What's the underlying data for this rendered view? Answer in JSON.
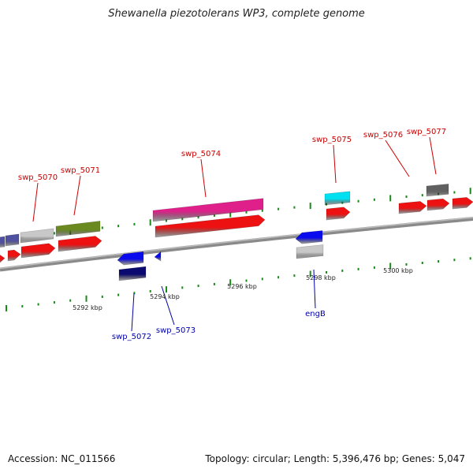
{
  "title": "Shewanella piezotolerans WP3, complete genome",
  "footer": {
    "accession": "Accession: NC_011566",
    "summary": "Topology: circular; Length: 5,396,476 bp; Genes: 5,047"
  },
  "scale_labels": [
    "5292 kbp",
    "5294 kbp",
    "5296 kbp",
    "5298 kbp",
    "5300 kbp"
  ],
  "gene_labels": [
    {
      "text": "swp_5070",
      "strand": "plus"
    },
    {
      "text": "swp_5071",
      "strand": "plus"
    },
    {
      "text": "swp_5074",
      "strand": "plus"
    },
    {
      "text": "swp_5075",
      "strand": "plus"
    },
    {
      "text": "swp_5076",
      "strand": "plus"
    },
    {
      "text": "swp_5077",
      "strand": "plus"
    },
    {
      "text": "swp_5072",
      "strand": "minus"
    },
    {
      "text": "swp_5073",
      "strand": "minus"
    },
    {
      "text": "engB",
      "strand": "minus"
    }
  ],
  "colors": {
    "plus_label": "#cc0000",
    "minus_label": "#0000aa",
    "backbone": "#8a8a8a",
    "tick": "#1a8a1a",
    "cds": "#ee1111",
    "magenta": "#e0208a",
    "olive": "#6a8a20",
    "gray": "#c8c8c8",
    "darkgray": "#606060",
    "cyan": "#00e0f0",
    "blue": "#0a0aee",
    "navy": "#0a0a70",
    "slateblue": "#5050a0"
  }
}
